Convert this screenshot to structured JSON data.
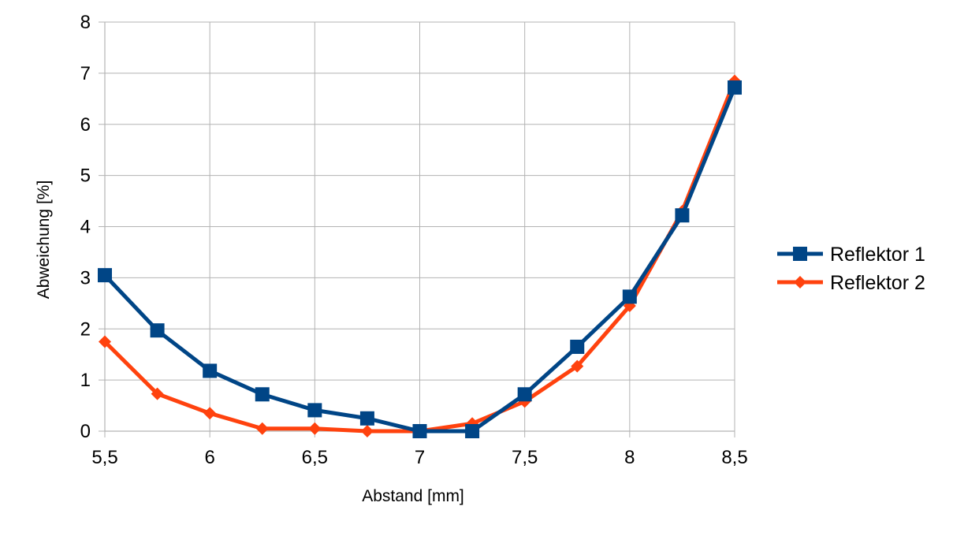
{
  "chart_data": {
    "type": "line",
    "title": "",
    "xlabel": "Abstand [mm]",
    "ylabel": "Abweichung [%]",
    "xlim": [
      5.5,
      8.5
    ],
    "ylim": [
      0,
      8
    ],
    "x_ticks": [
      5.5,
      6,
      6.5,
      7,
      7.5,
      8,
      8.5
    ],
    "x_tick_labels": [
      "5,5",
      "6",
      "6,5",
      "7",
      "7,5",
      "8",
      "8,5"
    ],
    "y_ticks": [
      0,
      1,
      2,
      3,
      4,
      5,
      6,
      7,
      8
    ],
    "y_tick_labels": [
      "0",
      "1",
      "2",
      "3",
      "4",
      "5",
      "6",
      "7",
      "8"
    ],
    "grid": true,
    "legend_position": "right",
    "x": [
      5.5,
      5.75,
      6,
      6.25,
      6.5,
      6.75,
      7,
      7.25,
      7.5,
      7.75,
      8,
      8.25,
      8.5
    ],
    "series": [
      {
        "name": "Reflektor 1",
        "color": "#004586",
        "marker": "square",
        "values": [
          3.05,
          1.97,
          1.18,
          0.72,
          0.41,
          0.25,
          0.0,
          0.0,
          0.72,
          1.65,
          2.63,
          4.22,
          6.72
        ]
      },
      {
        "name": "Reflektor 2",
        "color": "#ff420e",
        "marker": "diamond",
        "values": [
          1.75,
          0.73,
          0.35,
          0.05,
          0.05,
          0.0,
          0.0,
          0.15,
          0.58,
          1.27,
          2.45,
          4.3,
          6.85
        ]
      }
    ]
  }
}
